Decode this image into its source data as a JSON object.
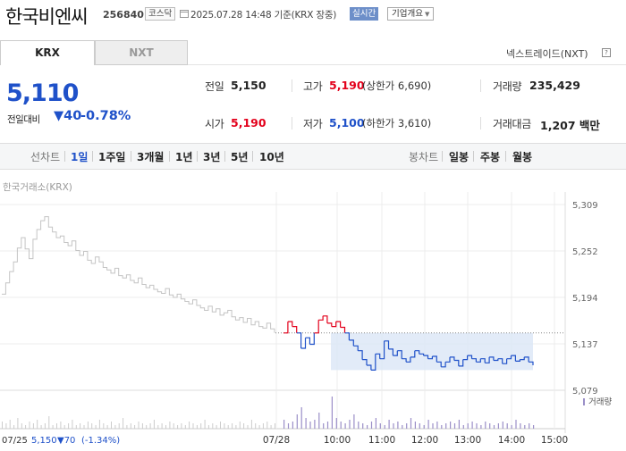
{
  "header": {
    "stock_name": "한국비엔씨",
    "stock_code": "256840",
    "market_badge": "코스닥",
    "datetime": "2025.07.28 14:48 기준(KRX 장중)",
    "realtime_label": "실시간",
    "overview_label": "기업개요"
  },
  "tabs": [
    {
      "label": "KRX",
      "active": true
    },
    {
      "label": "NXT",
      "active": false
    }
  ],
  "nxt_link": "넥스트레이드(NXT)",
  "price": {
    "current": "5,110",
    "change_label": "전일대비",
    "change_value": "▼40",
    "change_percent": "-0.78%"
  },
  "stats": {
    "prev_close": {
      "label": "전일",
      "value": "5,150"
    },
    "high": {
      "label": "고가",
      "value": "5,190",
      "sub": "(상한가 6,690)"
    },
    "volume": {
      "label": "거래량",
      "value": "235,429"
    },
    "open": {
      "label": "시가",
      "value": "5,190"
    },
    "low": {
      "label": "저가",
      "value": "5,100",
      "sub": "(하한가 3,610)"
    },
    "amount": {
      "label": "거래대금",
      "value": "1,207 백만"
    }
  },
  "period_bar": {
    "line_label": "선차트",
    "line_periods": [
      "1일",
      "1주일",
      "3개월",
      "1년",
      "3년",
      "5년",
      "10년"
    ],
    "selected": "1일",
    "candle_label": "봉차트",
    "candle_periods": [
      "일봉",
      "주봉",
      "월봉"
    ]
  },
  "chart_caption": "한국거래소(KRX)",
  "chart_data": {
    "type": "line",
    "y_ticks": [
      "5,309",
      "5,252",
      "5,194",
      "5,137",
      "5,079"
    ],
    "ylim": [
      5079,
      5309
    ],
    "x_ticks": [
      "07/28",
      "10:00",
      "11:00",
      "12:00",
      "13:00",
      "14:00",
      "15:00"
    ],
    "reference_price": 5150,
    "volume_legend": "거래량",
    "prev_day": {
      "date": "07/25",
      "close": "5,150",
      "change": "▼70",
      "change_percent": "(-1.34%)"
    },
    "colors": {
      "prev_day": "#c4c4c4",
      "up": "#e3001b",
      "down": "#1f51c9",
      "fill": "#dde8f7"
    },
    "prev_day_series": [
      5198,
      5212,
      5226,
      5238,
      5255,
      5268,
      5254,
      5242,
      5266,
      5278,
      5289,
      5294,
      5281,
      5275,
      5268,
      5270,
      5262,
      5258,
      5264,
      5252,
      5246,
      5251,
      5240,
      5236,
      5244,
      5238,
      5231,
      5228,
      5224,
      5230,
      5221,
      5218,
      5222,
      5215,
      5212,
      5218,
      5210,
      5206,
      5209,
      5204,
      5201,
      5199,
      5205,
      5197,
      5194,
      5198,
      5192,
      5189,
      5186,
      5191,
      5184,
      5181,
      5178,
      5183,
      5176,
      5180,
      5172,
      5175,
      5178,
      5170,
      5166,
      5169,
      5163,
      5168,
      5160,
      5164,
      5158,
      5156,
      5162,
      5155,
      5150
    ],
    "today_series": [
      5150,
      5164,
      5158,
      5150,
      5131,
      5144,
      5136,
      5150,
      5166,
      5171,
      5162,
      5158,
      5164,
      5157,
      5150,
      5141,
      5134,
      5128,
      5117,
      5110,
      5104,
      5124,
      5118,
      5140,
      5130,
      5122,
      5128,
      5118,
      5114,
      5120,
      5128,
      5124,
      5122,
      5118,
      5121,
      5114,
      5108,
      5114,
      5120,
      5116,
      5109,
      5117,
      5122,
      5118,
      5114,
      5118,
      5113,
      5120,
      5116,
      5118,
      5112,
      5118,
      5122,
      5115,
      5117,
      5120,
      5114,
      5110
    ],
    "today_volume": [
      5,
      3,
      4,
      8,
      12,
      6,
      4,
      5,
      9,
      3,
      4,
      18,
      6,
      4,
      3,
      5,
      8,
      4,
      3,
      2,
      4,
      6,
      3,
      2,
      5,
      3,
      4,
      2,
      3,
      6,
      4,
      3,
      2,
      5,
      3,
      4,
      2,
      3,
      4,
      3,
      5,
      2,
      3,
      4,
      3,
      2,
      4,
      3,
      2,
      3,
      4,
      3,
      2,
      5,
      3,
      2,
      3,
      2
    ],
    "prev_volume": [
      4,
      3,
      5,
      2,
      6,
      3,
      2,
      4,
      3,
      5,
      2,
      3,
      7,
      2,
      3,
      4,
      2,
      3,
      5,
      2,
      3,
      2,
      4,
      3,
      2,
      5,
      3,
      2,
      4,
      2,
      3,
      6,
      2,
      3,
      2,
      4,
      3,
      2,
      3,
      5,
      2,
      3,
      2,
      4,
      3,
      2,
      3,
      2,
      4,
      3,
      2,
      3,
      5,
      2,
      3,
      2,
      4,
      3,
      2,
      3,
      2,
      4,
      3,
      2,
      5,
      3,
      2,
      3,
      4,
      2,
      3
    ]
  }
}
